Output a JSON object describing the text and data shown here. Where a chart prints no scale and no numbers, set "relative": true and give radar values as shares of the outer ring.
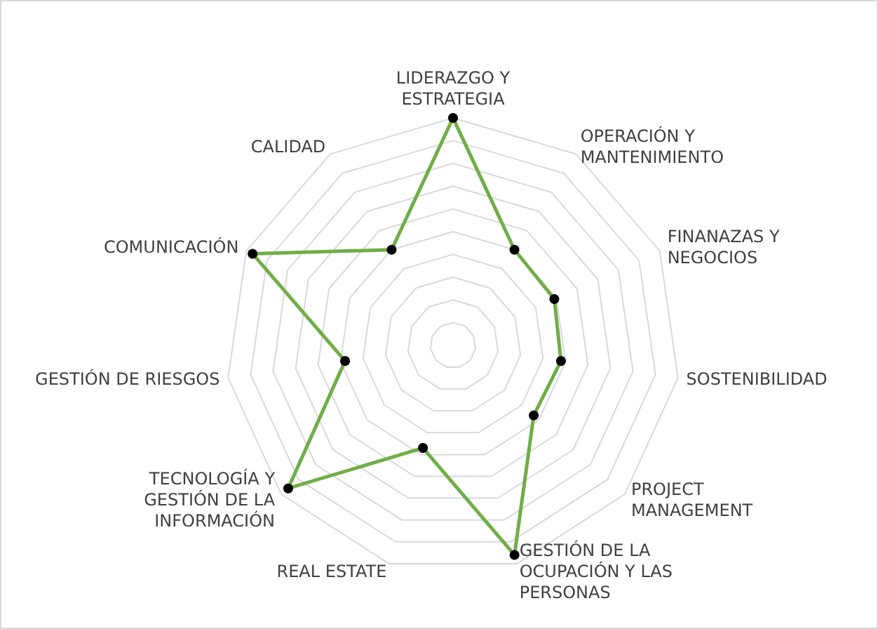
{
  "chart_data": {
    "type": "radar",
    "relative": true,
    "categories": [
      "LIDERAZGO Y\nESTRATEGIA",
      "OPERACIÓN Y\nMANTENIMIENTO",
      "FINANAZAS Y\nNEGOCIOS",
      "SOSTENIBILIDAD",
      "PROJECT\nMANAGEMENT",
      "GESTIÓN DE LA\nOCUPACIÓN Y LAS\nPERSONAS",
      "REAL ESTATE",
      "TECNOLOGÍA Y\nGESTIÓN DE LA\nINFORMACIÓN",
      "GESTIÓN DE RIESGOS",
      "COMUNICACIÓN",
      "CALIDAD"
    ],
    "series": [
      {
        "color": "#70ad47",
        "values": [
          1,
          0.5,
          0.49,
          0.48,
          0.47,
          0.96,
          0.47,
          0.96,
          0.48,
          0.97,
          0.5
        ]
      }
    ],
    "marker": "circle",
    "line_style": "solid",
    "grid": true
  }
}
